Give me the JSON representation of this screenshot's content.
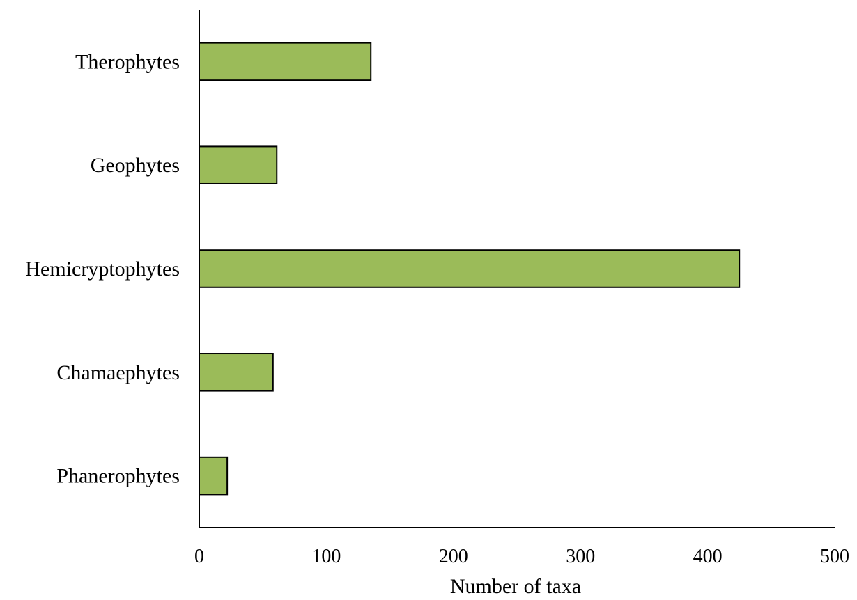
{
  "chart_data": {
    "type": "bar",
    "orientation": "horizontal",
    "categories": [
      "Therophytes",
      "Geophytes",
      "Hemicryptophytes",
      "Chamaephytes",
      "Phanerophytes"
    ],
    "values": [
      135,
      61,
      425,
      58,
      22
    ],
    "title": "",
    "xlabel": "Number of taxa",
    "ylabel": "",
    "xlim": [
      0,
      500
    ],
    "xticks": [
      0,
      100,
      200,
      300,
      400,
      500
    ],
    "xtick_labels": [
      "0",
      "100",
      "200",
      "300",
      "400",
      "500"
    ],
    "grid": false,
    "legend": false,
    "bar_color": "#9bbb59",
    "edge_color": "#000000"
  }
}
